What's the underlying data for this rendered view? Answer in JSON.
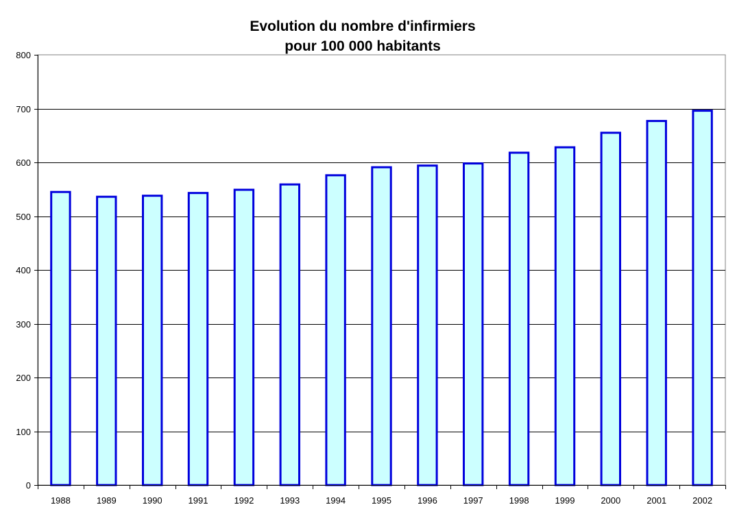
{
  "chart_data": {
    "type": "bar",
    "title_lines": [
      "Evolution du nombre d'infirmiers",
      "pour 100 000 habitants"
    ],
    "categories": [
      "1988",
      "1989",
      "1990",
      "1991",
      "1992",
      "1993",
      "1994",
      "1995",
      "1996",
      "1997",
      "1998",
      "1999",
      "2000",
      "2001",
      "2002"
    ],
    "values": [
      545,
      536,
      538,
      543,
      549,
      559,
      576,
      591,
      594,
      598,
      618,
      628,
      655,
      677,
      696
    ],
    "ylim": [
      0,
      800
    ],
    "yticks": [
      0,
      100,
      200,
      300,
      400,
      500,
      600,
      700,
      800
    ],
    "grid": true,
    "legend": "none",
    "colors": {
      "bar_fill": "#ccffff",
      "bar_stroke": "#0000dd",
      "grid": "#000000",
      "axis": "#808080"
    }
  }
}
